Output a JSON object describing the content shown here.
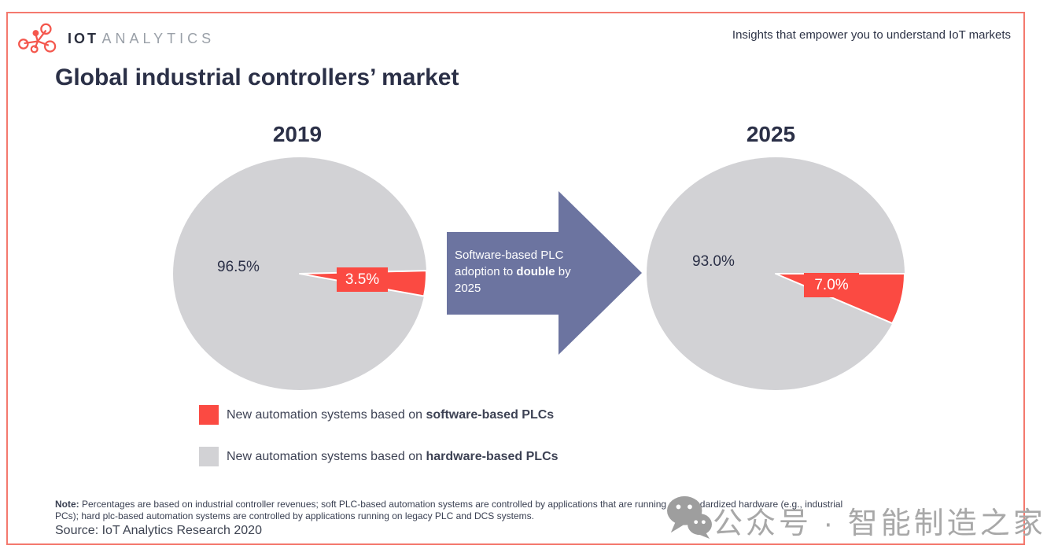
{
  "header": {
    "logo": {
      "icon": "molecule-network-icon",
      "brand_bold": "IOT",
      "brand_light": "ANALYTICS"
    },
    "tagline": "Insights that empower you to understand IoT markets"
  },
  "title": "Global industrial controllers’ market",
  "chart_data": [
    {
      "type": "pie",
      "title": "2019",
      "series": [
        {
          "name": "New automation systems based on software-based PLCs",
          "value": 3.5,
          "color": "#fb4a42"
        },
        {
          "name": "New automation systems based on hardware-based PLCs",
          "value": 96.5,
          "color": "#d2d2d5"
        }
      ],
      "labels": {
        "hardware": "96.5%",
        "software": "3.5%"
      },
      "slice_start_angle_deg": -1.5,
      "legend_position": "bottom-left"
    },
    {
      "type": "pie",
      "title": "2025",
      "series": [
        {
          "name": "New automation systems based on software-based PLCs",
          "value": 7.0,
          "color": "#fb4a42"
        },
        {
          "name": "New automation systems based on hardware-based PLCs",
          "value": 93.0,
          "color": "#d2d2d5"
        }
      ],
      "labels": {
        "hardware": "93.0%",
        "software": "7.0%"
      },
      "slice_start_angle_deg": 0,
      "legend_position": "bottom-left"
    }
  ],
  "arrow": {
    "text_prefix": "Software-based PLC adoption to ",
    "text_bold": "double",
    "text_suffix": " by 2025"
  },
  "legend": [
    {
      "swatch_color": "#fb4a42",
      "text_prefix": "New automation systems based on ",
      "text_bold": "software-based PLCs"
    },
    {
      "swatch_color": "#d2d2d5",
      "text_prefix": "New automation systems based on ",
      "text_bold": "hardware-based PLCs"
    }
  ],
  "footer": {
    "note_bold": "Note:",
    "note_line1": " Percentages are based on industrial controller revenues; soft PLC-based automation systems are controlled by applications that are running on standardized hardware (e.g., industrial",
    "note_line2": "PCs); hard plc-based automation systems are controlled by applications running on legacy PLC and DCS systems.",
    "source": "Source: IoT Analytics Research 2020"
  },
  "watermark": {
    "icon": "wechat-icon",
    "text": "公众号 · 智能制造之家"
  },
  "colors": {
    "accent_red": "#fb4a42",
    "pie_gray": "#d2d2d5",
    "arrow_slate": "#6c74a0",
    "heading_navy": "#2b3047",
    "frame_border": "#f4796e",
    "watermark_gray": "#a8a8a8"
  }
}
